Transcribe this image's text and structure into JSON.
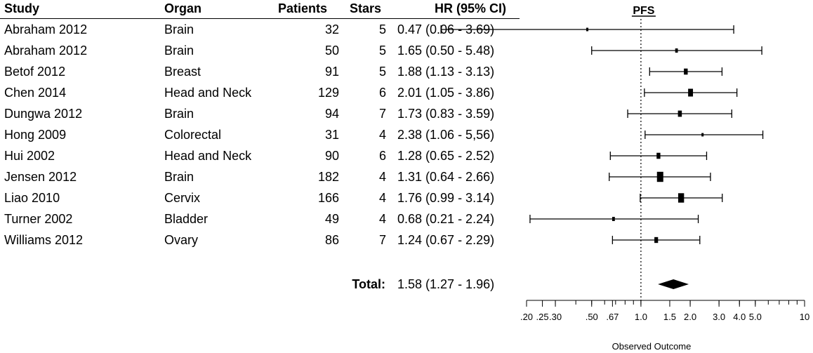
{
  "columns": {
    "study": "Study",
    "organ": "Organ",
    "patients": "Patients",
    "stars": "Stars",
    "hr": "HR (95% CI)"
  },
  "plot_title": "PFS",
  "total_label": "Total:",
  "chart_data": {
    "type": "forest",
    "title": "PFS",
    "xlabel": "Observed Outcome",
    "x_scale": "log",
    "xlim": [
      0.2,
      10
    ],
    "reference_line": 1.0,
    "tick_values": [
      0.2,
      0.25,
      0.3,
      0.5,
      0.67,
      1.0,
      1.5,
      2.0,
      3.0,
      4.0,
      5.0,
      10
    ],
    "tick_labels": [
      ".20",
      ".25",
      ".30",
      ".50",
      ".67",
      "1.0",
      "1.5",
      "2.0",
      "3.0",
      "4.0",
      "5.0",
      "10"
    ],
    "studies": [
      {
        "study": "Abraham 2012",
        "organ": "Brain",
        "patients": 32,
        "stars": 5,
        "hr": 0.47,
        "lo": 0.06,
        "hi": 3.69,
        "hr_text": "0.47 (0.06 - 3.69)"
      },
      {
        "study": "Abraham 2012",
        "organ": "Brain",
        "patients": 50,
        "stars": 5,
        "hr": 1.65,
        "lo": 0.5,
        "hi": 5.48,
        "hr_text": "1.65 (0.50 - 5.48)"
      },
      {
        "study": "Betof 2012",
        "organ": "Breast",
        "patients": 91,
        "stars": 5,
        "hr": 1.88,
        "lo": 1.13,
        "hi": 3.13,
        "hr_text": "1.88 (1.13 - 3.13)"
      },
      {
        "study": "Chen  2014",
        "organ": "Head and Neck",
        "patients": 129,
        "stars": 6,
        "hr": 2.01,
        "lo": 1.05,
        "hi": 3.86,
        "hr_text": "2.01 (1.05 - 3.86)"
      },
      {
        "study": "Dungwa 2012",
        "organ": "Brain",
        "patients": 94,
        "stars": 7,
        "hr": 1.73,
        "lo": 0.83,
        "hi": 3.59,
        "hr_text": "1.73 (0.83 - 3.59)"
      },
      {
        "study": "Hong 2009",
        "organ": "Colorectal",
        "patients": 31,
        "stars": 4,
        "hr": 2.38,
        "lo": 1.06,
        "hi": 5.56,
        "hr_text": "2.38 (1.06 - 5,56)"
      },
      {
        "study": "Hui 2002",
        "organ": "Head and Neck",
        "patients": 90,
        "stars": 6,
        "hr": 1.28,
        "lo": 0.65,
        "hi": 2.52,
        "hr_text": "1.28 (0.65 - 2.52)"
      },
      {
        "study": "Jensen 2012",
        "organ": "Brain",
        "patients": 182,
        "stars": 4,
        "hr": 1.31,
        "lo": 0.64,
        "hi": 2.66,
        "hr_text": "1.31 (0.64 - 2.66)"
      },
      {
        "study": "Liao 2010",
        "organ": "Cervix",
        "patients": 166,
        "stars": 4,
        "hr": 1.76,
        "lo": 0.99,
        "hi": 3.14,
        "hr_text": "1.76 (0.99 - 3.14)"
      },
      {
        "study": "Turner 2002",
        "organ": "Bladder",
        "patients": 49,
        "stars": 4,
        "hr": 0.68,
        "lo": 0.21,
        "hi": 2.24,
        "hr_text": "0.68 (0.21 - 2.24)"
      },
      {
        "study": "Williams 2012",
        "organ": "Ovary",
        "patients": 86,
        "stars": 7,
        "hr": 1.24,
        "lo": 0.67,
        "hi": 2.29,
        "hr_text": "1.24 (0.67 - 2.29)"
      }
    ],
    "total": {
      "hr": 1.58,
      "lo": 1.27,
      "hi": 1.96,
      "hr_text": "1.58 (1.27 - 1.96)"
    }
  }
}
